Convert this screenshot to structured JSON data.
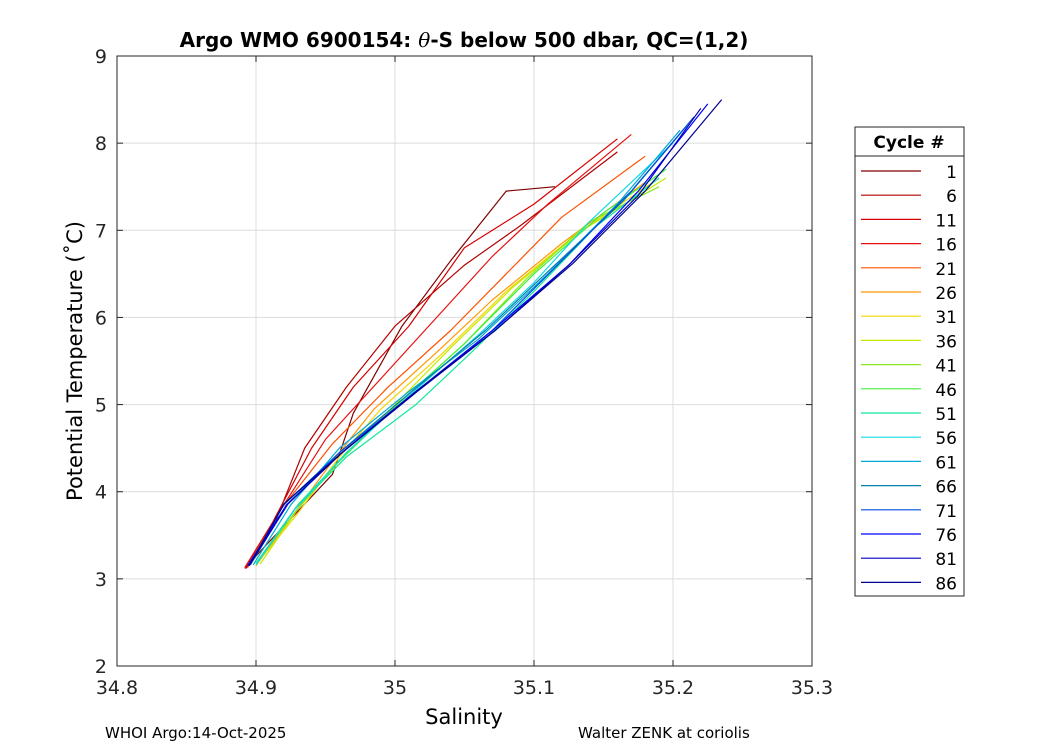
{
  "chart_data": {
    "type": "line",
    "title_prefix": "Argo WMO 6900154: ",
    "title_theta": "θ",
    "title_suffix": "-S below 500 dbar,  QC=(1,2)",
    "xlabel": "Salinity",
    "ylabel": "Potential Temperature (˚C)",
    "xlim": [
      34.8,
      35.3
    ],
    "ylim": [
      2,
      9
    ],
    "xticks": [
      34.8,
      34.9,
      35.0,
      35.1,
      35.2,
      35.3
    ],
    "xtick_labels": [
      "34.8",
      "34.9",
      "35",
      "35.1",
      "35.2",
      "35.3"
    ],
    "yticks": [
      2,
      3,
      4,
      5,
      6,
      7,
      8,
      9
    ],
    "ytick_labels": [
      "2",
      "3",
      "4",
      "5",
      "6",
      "7",
      "8",
      "9"
    ],
    "grid": true,
    "legend_title": "Cycle #",
    "legend_position": "right",
    "series": [
      {
        "name": "1",
        "color": "#800000",
        "x": [
          34.892,
          34.905,
          34.955,
          34.97,
          35.005,
          35.04,
          35.08,
          35.115
        ],
        "y": [
          3.12,
          3.35,
          4.2,
          4.9,
          5.9,
          6.65,
          7.45,
          7.5
        ]
      },
      {
        "name": "6",
        "color": "#b20000",
        "x": [
          34.893,
          34.915,
          34.935,
          34.965,
          35.0,
          35.05,
          35.09,
          35.16
        ],
        "y": [
          3.12,
          3.7,
          4.5,
          5.2,
          5.9,
          6.6,
          7.05,
          7.9
        ]
      },
      {
        "name": "11",
        "color": "#d50000",
        "x": [
          34.892,
          34.912,
          34.94,
          34.97,
          35.01,
          35.05,
          35.1,
          35.16
        ],
        "y": [
          3.13,
          3.65,
          4.5,
          5.2,
          5.9,
          6.8,
          7.3,
          8.05
        ]
      },
      {
        "name": "16",
        "color": "#e81010",
        "x": [
          34.892,
          34.914,
          34.95,
          34.99,
          35.03,
          35.07,
          35.11,
          35.17
        ],
        "y": [
          3.12,
          3.7,
          4.6,
          5.3,
          6.0,
          6.7,
          7.3,
          8.1
        ]
      },
      {
        "name": "21",
        "color": "#ff5000",
        "x": [
          34.894,
          34.918,
          34.955,
          34.995,
          35.04,
          35.08,
          35.12,
          35.18
        ],
        "y": [
          3.13,
          3.8,
          4.55,
          5.2,
          5.85,
          6.5,
          7.15,
          7.85
        ]
      },
      {
        "name": "26",
        "color": "#ff9800",
        "x": [
          34.9,
          34.925,
          34.955,
          34.985,
          35.03,
          35.07,
          35.12,
          35.18
        ],
        "y": [
          3.15,
          3.7,
          4.35,
          4.95,
          5.6,
          6.2,
          6.85,
          7.55
        ]
      },
      {
        "name": "31",
        "color": "#f0d800",
        "x": [
          34.9,
          34.93,
          34.96,
          34.99,
          35.035,
          35.08,
          35.13,
          35.19
        ],
        "y": [
          3.16,
          3.75,
          4.4,
          4.95,
          5.6,
          6.3,
          6.95,
          7.6
        ]
      },
      {
        "name": "36",
        "color": "#c8e800",
        "x": [
          34.903,
          34.93,
          34.96,
          35.0,
          35.04,
          35.085,
          35.135,
          35.195
        ],
        "y": [
          3.17,
          3.8,
          4.35,
          5.0,
          5.65,
          6.35,
          7.0,
          7.6
        ]
      },
      {
        "name": "41",
        "color": "#88e81c",
        "x": [
          34.9,
          34.93,
          34.965,
          35.005,
          35.05,
          35.095,
          35.14,
          35.19
        ],
        "y": [
          3.18,
          3.8,
          4.45,
          5.05,
          5.7,
          6.45,
          7.1,
          7.5
        ]
      },
      {
        "name": "46",
        "color": "#40f040",
        "x": [
          34.9,
          34.93,
          34.96,
          35.005,
          35.05,
          35.1,
          35.15,
          35.195
        ],
        "y": [
          3.18,
          3.85,
          4.35,
          5.05,
          5.7,
          6.5,
          7.2,
          7.7
        ]
      },
      {
        "name": "51",
        "color": "#10e8a0",
        "x": [
          34.9,
          34.928,
          34.965,
          35.015,
          35.055,
          35.1,
          35.145,
          35.19
        ],
        "y": [
          3.17,
          3.8,
          4.4,
          5.0,
          5.6,
          6.3,
          7.05,
          7.6
        ]
      },
      {
        "name": "56",
        "color": "#10d8e8",
        "x": [
          34.9,
          34.928,
          34.965,
          35.01,
          35.06,
          35.1,
          35.14,
          35.2
        ],
        "y": [
          3.16,
          3.8,
          4.45,
          5.1,
          5.8,
          6.4,
          7.1,
          8.0
        ]
      },
      {
        "name": "61",
        "color": "#00a8d8",
        "x": [
          34.898,
          34.925,
          34.96,
          35.01,
          35.06,
          35.11,
          35.16,
          35.205
        ],
        "y": [
          3.16,
          3.85,
          4.5,
          5.15,
          5.75,
          6.5,
          7.3,
          8.15
        ]
      },
      {
        "name": "66",
        "color": "#0080a8",
        "x": [
          34.896,
          34.922,
          34.96,
          35.012,
          35.065,
          35.115,
          35.165,
          35.21
        ],
        "y": [
          3.16,
          3.85,
          4.45,
          5.15,
          5.85,
          6.6,
          7.35,
          8.2
        ]
      },
      {
        "name": "71",
        "color": "#0050e0",
        "x": [
          34.895,
          34.92,
          34.96,
          35.015,
          35.07,
          35.12,
          35.17,
          35.215
        ],
        "y": [
          3.15,
          3.85,
          4.45,
          5.15,
          5.85,
          6.65,
          7.45,
          8.3
        ]
      },
      {
        "name": "76",
        "color": "#0000ff",
        "x": [
          34.894,
          34.922,
          34.962,
          35.015,
          35.07,
          35.125,
          35.175,
          35.225
        ],
        "y": [
          3.15,
          3.85,
          4.45,
          5.15,
          5.85,
          6.6,
          7.45,
          8.45
        ]
      },
      {
        "name": "81",
        "color": "#0000c0",
        "x": [
          34.895,
          34.923,
          34.962,
          35.016,
          35.072,
          35.125,
          35.175,
          35.22
        ],
        "y": [
          3.15,
          3.86,
          4.45,
          5.15,
          5.85,
          6.6,
          7.4,
          8.4
        ]
      },
      {
        "name": "86",
        "color": "#000090",
        "x": [
          34.895,
          34.92,
          34.962,
          35.016,
          35.072,
          35.128,
          35.18,
          35.235
        ],
        "y": [
          3.15,
          3.86,
          4.45,
          5.16,
          5.85,
          6.62,
          7.45,
          8.5
        ]
      }
    ]
  },
  "footer": {
    "left": "WHOI Argo:14-Oct-2025",
    "right": "Walter ZENK at coriolis"
  }
}
